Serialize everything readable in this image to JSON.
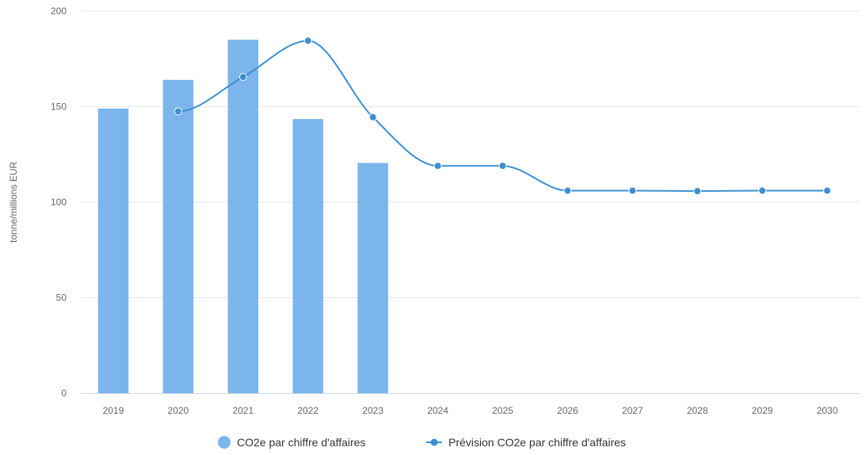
{
  "chart_data": {
    "type": "bar",
    "categories": [
      "2019",
      "2020",
      "2021",
      "2022",
      "2023",
      "2024",
      "2025",
      "2026",
      "2027",
      "2028",
      "2029",
      "2030"
    ],
    "series": [
      {
        "name": "CO2e par chiffre d'affaires",
        "type": "bar",
        "values": [
          149,
          164,
          185,
          143.5,
          120.5,
          null,
          null,
          null,
          null,
          null,
          null,
          null
        ]
      },
      {
        "name": "Prévision CO2e par chiffre d'affaires",
        "type": "line",
        "values": [
          null,
          147.5,
          165.5,
          184.5,
          144.5,
          119,
          119,
          106,
          106,
          105.8,
          106,
          106
        ]
      }
    ],
    "ylabel": "tonne/millions EUR",
    "xlabel": "",
    "ylim": [
      0,
      200
    ],
    "yticks": [
      0,
      50,
      100,
      150,
      200
    ],
    "grid": true,
    "legend": "bottom-center",
    "colors": {
      "bar": "#7cb5ec",
      "line": "#3b8fd1",
      "grid": "#e6e6e6",
      "axis": "#ccd6eb"
    }
  }
}
